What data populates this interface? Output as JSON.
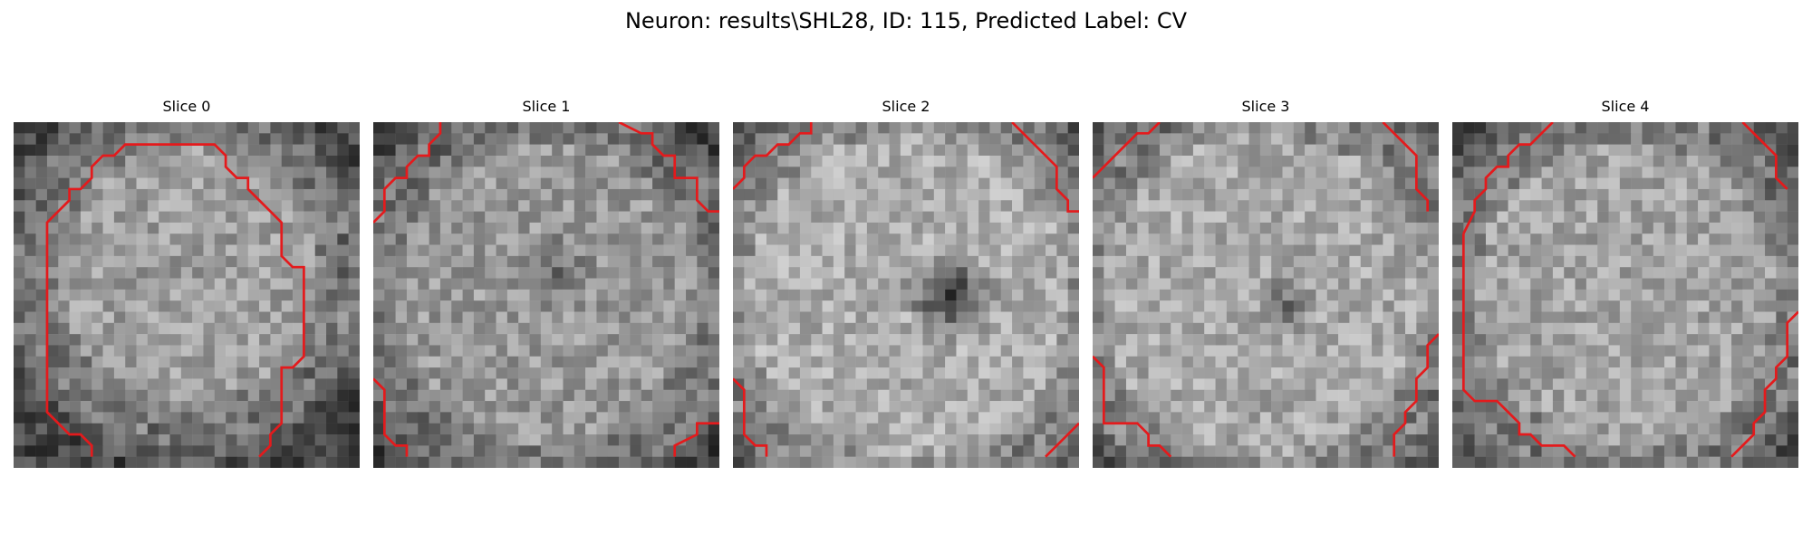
{
  "figure": {
    "title": "Neuron: results\\SHL28, ID: 115, Predicted Label: CV"
  },
  "panels": [
    {
      "title": "Slice 0"
    },
    {
      "title": "Slice 1"
    },
    {
      "title": "Slice 2"
    },
    {
      "title": "Slice 3"
    },
    {
      "title": "Slice 4"
    }
  ],
  "colors": {
    "background": "#ffffff",
    "contour": "#e41a1c"
  }
}
